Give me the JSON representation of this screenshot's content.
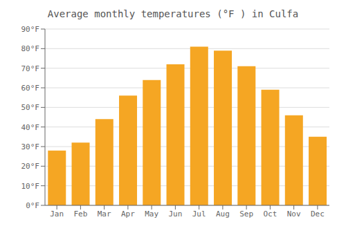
{
  "chart_data": {
    "type": "bar",
    "title": "Average monthly temperatures (°F ) in Culfa",
    "categories": [
      "Jan",
      "Feb",
      "Mar",
      "Apr",
      "May",
      "Jun",
      "Jul",
      "Aug",
      "Sep",
      "Oct",
      "Nov",
      "Dec"
    ],
    "values": [
      28,
      32,
      44,
      56,
      64,
      72,
      81,
      79,
      71,
      59,
      46,
      35
    ],
    "color": "#F5A623",
    "ylim": [
      0,
      90
    ],
    "yticks": [
      {
        "value": 0,
        "label": "0°F"
      },
      {
        "value": 10,
        "label": "10°F"
      },
      {
        "value": 20,
        "label": "20°F"
      },
      {
        "value": 30,
        "label": "30°F"
      },
      {
        "value": 40,
        "label": "40°F"
      },
      {
        "value": 50,
        "label": "50°F"
      },
      {
        "value": 60,
        "label": "60°F"
      },
      {
        "value": 70,
        "label": "70°F"
      },
      {
        "value": 80,
        "label": "80°F"
      },
      {
        "value": 90,
        "label": "90°F"
      }
    ],
    "grid": true
  }
}
